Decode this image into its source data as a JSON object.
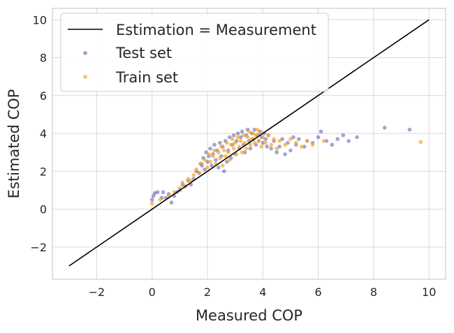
{
  "chart_data": {
    "type": "scatter",
    "title": "",
    "xlabel": "Measured COP",
    "ylabel": "Estimated COP",
    "xlim": [
      -3.6,
      10.6
    ],
    "ylim": [
      -3.7,
      10.6
    ],
    "xticks": [
      -2,
      0,
      2,
      4,
      6,
      8,
      10
    ],
    "yticks": [
      -2,
      0,
      2,
      4,
      6,
      8,
      10
    ],
    "xtick_labels": [
      "−2",
      "0",
      "2",
      "4",
      "6",
      "8",
      "10"
    ],
    "ytick_labels": [
      "−2",
      "0",
      "2",
      "4",
      "6",
      "8",
      "10"
    ],
    "grid": true,
    "legend_position": "upper-left",
    "reference_line": {
      "name": "Estimation = Measurement",
      "x": [
        -3,
        10
      ],
      "y": [
        -3,
        10
      ],
      "color": "#000000"
    },
    "series": [
      {
        "name": "Test set",
        "color": "#1f1c8f",
        "points": [
          [
            0.0,
            0.5
          ],
          [
            0.05,
            0.7
          ],
          [
            0.1,
            0.85
          ],
          [
            0.2,
            0.9
          ],
          [
            0.35,
            0.6
          ],
          [
            0.4,
            0.9
          ],
          [
            0.5,
            0.6
          ],
          [
            0.6,
            0.8
          ],
          [
            0.7,
            0.35
          ],
          [
            0.8,
            0.7
          ],
          [
            0.9,
            0.9
          ],
          [
            1.0,
            1.0
          ],
          [
            1.1,
            1.3
          ],
          [
            1.2,
            1.2
          ],
          [
            1.3,
            1.5
          ],
          [
            1.4,
            1.3
          ],
          [
            1.5,
            1.6
          ],
          [
            1.6,
            2.0
          ],
          [
            1.7,
            1.9
          ],
          [
            1.75,
            2.4
          ],
          [
            1.8,
            2.3
          ],
          [
            1.85,
            2.7
          ],
          [
            1.9,
            2.1
          ],
          [
            1.95,
            3.0
          ],
          [
            2.0,
            2.5
          ],
          [
            2.05,
            2.8
          ],
          [
            2.1,
            3.2
          ],
          [
            2.15,
            2.3
          ],
          [
            2.2,
            2.9
          ],
          [
            2.25,
            3.4
          ],
          [
            2.3,
            2.6
          ],
          [
            2.35,
            3.1
          ],
          [
            2.4,
            2.2
          ],
          [
            2.45,
            3.5
          ],
          [
            2.5,
            2.8
          ],
          [
            2.55,
            3.3
          ],
          [
            2.6,
            2.0
          ],
          [
            2.65,
            3.6
          ],
          [
            2.7,
            2.5
          ],
          [
            2.75,
            3.1
          ],
          [
            2.8,
            3.8
          ],
          [
            2.85,
            2.7
          ],
          [
            2.9,
            3.4
          ],
          [
            2.95,
            3.9
          ],
          [
            3.0,
            2.9
          ],
          [
            3.05,
            3.6
          ],
          [
            3.1,
            4.0
          ],
          [
            3.15,
            3.2
          ],
          [
            3.2,
            3.8
          ],
          [
            3.25,
            4.1
          ],
          [
            3.3,
            3.4
          ],
          [
            3.35,
            3.0
          ],
          [
            3.4,
            3.9
          ],
          [
            3.45,
            4.2
          ],
          [
            3.5,
            3.6
          ],
          [
            3.55,
            3.2
          ],
          [
            3.6,
            4.0
          ],
          [
            3.65,
            3.7
          ],
          [
            3.7,
            4.2
          ],
          [
            3.75,
            3.4
          ],
          [
            3.8,
            3.9
          ],
          [
            3.85,
            3.6
          ],
          [
            3.9,
            4.1
          ],
          [
            3.95,
            3.8
          ],
          [
            4.0,
            3.5
          ],
          [
            4.05,
            4.0
          ],
          [
            4.1,
            3.7
          ],
          [
            4.15,
            3.3
          ],
          [
            4.2,
            3.9
          ],
          [
            4.3,
            3.2
          ],
          [
            4.4,
            3.6
          ],
          [
            4.5,
            3.0
          ],
          [
            4.6,
            3.3
          ],
          [
            4.7,
            3.7
          ],
          [
            4.8,
            2.9
          ],
          [
            4.9,
            3.5
          ],
          [
            5.0,
            3.1
          ],
          [
            5.1,
            3.8
          ],
          [
            5.2,
            3.4
          ],
          [
            5.3,
            3.7
          ],
          [
            5.5,
            3.3
          ],
          [
            5.6,
            3.6
          ],
          [
            5.8,
            3.5
          ],
          [
            6.0,
            3.8
          ],
          [
            6.1,
            4.1
          ],
          [
            6.3,
            3.6
          ],
          [
            6.5,
            3.4
          ],
          [
            6.7,
            3.7
          ],
          [
            6.9,
            3.9
          ],
          [
            7.1,
            3.6
          ],
          [
            7.4,
            3.8
          ],
          [
            8.4,
            4.3
          ],
          [
            9.3,
            4.2
          ]
        ]
      },
      {
        "name": "Train set",
        "color": "#f5a623",
        "points": [
          [
            0.0,
            0.3
          ],
          [
            0.3,
            0.5
          ],
          [
            0.6,
            0.7
          ],
          [
            0.8,
            0.9
          ],
          [
            1.0,
            1.1
          ],
          [
            1.1,
            1.4
          ],
          [
            1.2,
            1.2
          ],
          [
            1.3,
            1.6
          ],
          [
            1.4,
            1.5
          ],
          [
            1.5,
            1.8
          ],
          [
            1.6,
            2.1
          ],
          [
            1.7,
            1.9
          ],
          [
            1.8,
            2.4
          ],
          [
            1.9,
            2.6
          ],
          [
            2.0,
            2.2
          ],
          [
            2.05,
            2.9
          ],
          [
            2.1,
            2.5
          ],
          [
            2.2,
            2.8
          ],
          [
            2.25,
            3.1
          ],
          [
            2.3,
            2.4
          ],
          [
            2.4,
            3.0
          ],
          [
            2.45,
            2.7
          ],
          [
            2.5,
            3.3
          ],
          [
            2.55,
            2.3
          ],
          [
            2.6,
            3.1
          ],
          [
            2.65,
            2.8
          ],
          [
            2.7,
            3.5
          ],
          [
            2.75,
            3.0
          ],
          [
            2.8,
            2.6
          ],
          [
            2.85,
            3.4
          ],
          [
            2.9,
            3.7
          ],
          [
            2.95,
            3.2
          ],
          [
            3.0,
            3.5
          ],
          [
            3.05,
            2.9
          ],
          [
            3.1,
            3.8
          ],
          [
            3.15,
            3.3
          ],
          [
            3.2,
            3.6
          ],
          [
            3.25,
            3.0
          ],
          [
            3.3,
            3.9
          ],
          [
            3.35,
            3.5
          ],
          [
            3.4,
            3.2
          ],
          [
            3.45,
            3.8
          ],
          [
            3.5,
            4.1
          ],
          [
            3.55,
            3.4
          ],
          [
            3.6,
            3.7
          ],
          [
            3.65,
            4.0
          ],
          [
            3.7,
            3.5
          ],
          [
            3.75,
            3.9
          ],
          [
            3.8,
            4.2
          ],
          [
            3.85,
            3.6
          ],
          [
            3.9,
            4.0
          ],
          [
            3.95,
            3.3
          ],
          [
            4.0,
            3.8
          ],
          [
            4.1,
            3.5
          ],
          [
            4.2,
            3.9
          ],
          [
            4.3,
            3.4
          ],
          [
            4.4,
            3.7
          ],
          [
            4.5,
            3.2
          ],
          [
            4.6,
            3.6
          ],
          [
            4.8,
            3.4
          ],
          [
            5.0,
            3.7
          ],
          [
            5.2,
            3.5
          ],
          [
            5.4,
            3.3
          ],
          [
            5.6,
            3.6
          ],
          [
            5.8,
            3.4
          ],
          [
            6.2,
            3.6
          ],
          [
            9.7,
            3.55
          ]
        ]
      }
    ]
  }
}
